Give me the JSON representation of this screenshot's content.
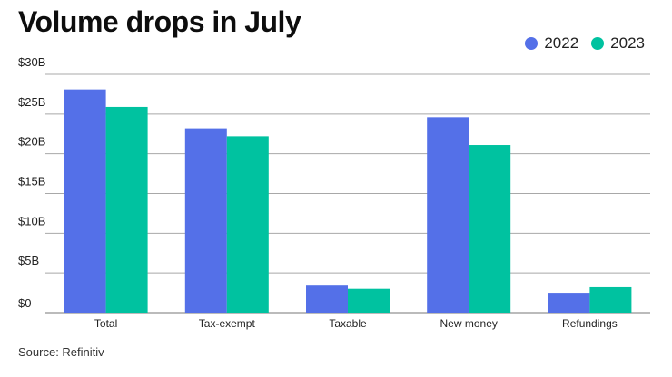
{
  "chart_data": {
    "type": "bar",
    "title": "Volume drops in July",
    "categories": [
      "Total",
      "Tax-exempt",
      "Taxable",
      "New money",
      "Refundings"
    ],
    "series": [
      {
        "name": "2022",
        "color": "#5470e8",
        "values": [
          28.1,
          23.2,
          3.4,
          24.6,
          2.5
        ]
      },
      {
        "name": "2023",
        "color": "#00c2a0",
        "values": [
          25.9,
          22.2,
          3.0,
          21.1,
          3.2
        ]
      }
    ],
    "yticks": [
      "$0",
      "$5B",
      "$10B",
      "$15B",
      "$20B",
      "$25B",
      "$30B"
    ],
    "ylim": [
      0,
      30
    ],
    "grid": true,
    "legend": "top-right",
    "source": "Source: Refinitiv"
  }
}
